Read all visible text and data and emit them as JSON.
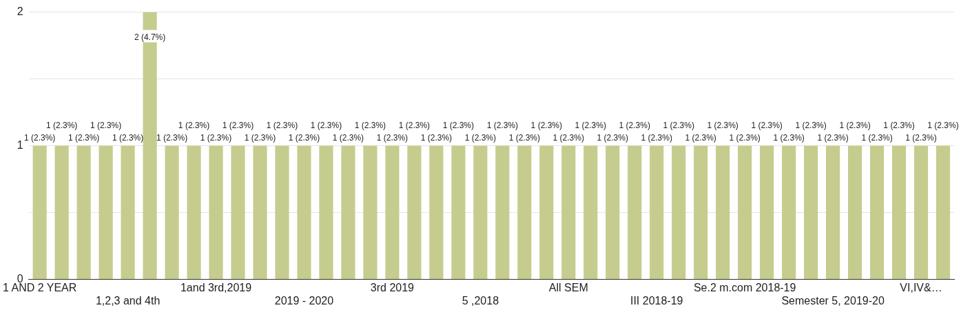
{
  "chart_data": {
    "type": "bar",
    "categories": [
      "1 AND 2 YEAR",
      null,
      null,
      null,
      "1,2,3 and 4th",
      null,
      null,
      null,
      "1and 3rd,2019",
      null,
      null,
      null,
      "2019 - 2020",
      null,
      null,
      null,
      "3rd 2019",
      null,
      null,
      null,
      "5 ,2018",
      null,
      null,
      null,
      "All SEM",
      null,
      null,
      null,
      "III 2018-19",
      null,
      null,
      null,
      "Se.2 m.com 2018-19",
      null,
      null,
      null,
      "Semester 5, 2019-20",
      null,
      null,
      null,
      "VI,IV&…",
      null
    ],
    "values": [
      1,
      1,
      1,
      1,
      1,
      2,
      1,
      1,
      1,
      1,
      1,
      1,
      1,
      1,
      1,
      1,
      1,
      1,
      1,
      1,
      1,
      1,
      1,
      1,
      1,
      1,
      1,
      1,
      1,
      1,
      1,
      1,
      1,
      1,
      1,
      1,
      1,
      1,
      1,
      1,
      1,
      1
    ],
    "value_labels": [
      "1 (2.3%)",
      "1 (2.3%)",
      "1 (2.3%)",
      "1 (2.3%)",
      "1 (2.3%)",
      "2 (4.7%)",
      "1 (2.3%)",
      "1 (2.3%)",
      "1 (2.3%)",
      "1 (2.3%)",
      "1 (2.3%)",
      "1 (2.3%)",
      "1 (2.3%)",
      "1 (2.3%)",
      "1 (2.3%)",
      "1 (2.3%)",
      "1 (2.3%)",
      "1 (2.3%)",
      "1 (2.3%)",
      "1 (2.3%)",
      "1 (2.3%)",
      "1 (2.3%)",
      "1 (2.3%)",
      "1 (2.3%)",
      "1 (2.3%)",
      "1 (2.3%)",
      "1 (2.3%)",
      "1 (2.3%)",
      "1 (2.3%)",
      "1 (2.3%)",
      "1 (2.3%)",
      "1 (2.3%)",
      "1 (2.3%)",
      "1 (2.3%)",
      "1 (2.3%)",
      "1 (2.3%)",
      "1 (2.3%)",
      "1 (2.3%)",
      "1 (2.3%)",
      "1 (2.3%)",
      "1 (2.3%)",
      "1 (2.3%)"
    ],
    "color": "#c5cc8e",
    "ylim": [
      0,
      2
    ],
    "yticks": [
      0,
      {
        "value": 0.5,
        "label": null
      },
      1,
      {
        "value": 1.5,
        "label": null
      },
      2
    ],
    "grid": "y",
    "legend": false
  }
}
